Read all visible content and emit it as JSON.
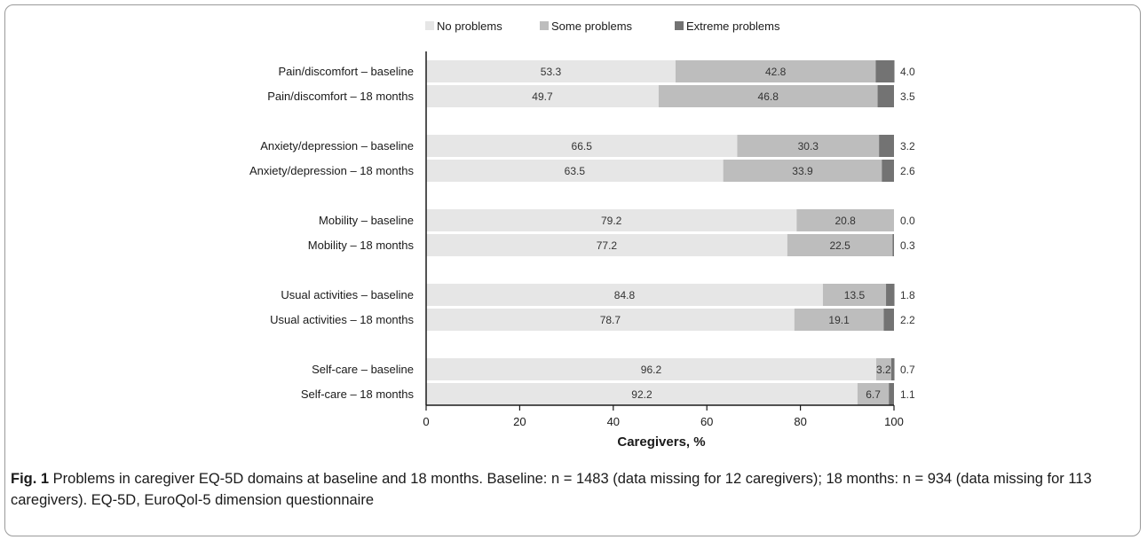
{
  "chart_data": {
    "type": "bar",
    "orientation": "horizontal",
    "stacked": true,
    "categories": [
      "Pain/discomfort – baseline",
      "Pain/discomfort – 18 months",
      "Anxiety/depression – baseline",
      "Anxiety/depression – 18 months",
      "Mobility – baseline",
      "Mobility – 18 months",
      "Usual activities – baseline",
      "Usual activities – 18 months",
      "Self-care – baseline",
      "Self-care – 18 months"
    ],
    "series": [
      {
        "name": "No problems",
        "color": "#e6e6e6",
        "values": [
          53.3,
          49.7,
          66.5,
          63.5,
          79.2,
          77.2,
          84.8,
          78.7,
          96.2,
          92.2
        ]
      },
      {
        "name": "Some problems",
        "color": "#bdbdbd",
        "values": [
          42.8,
          46.8,
          30.3,
          33.9,
          20.8,
          22.5,
          13.5,
          19.1,
          3.2,
          6.7
        ]
      },
      {
        "name": "Extreme problems",
        "color": "#737373",
        "values": [
          4.0,
          3.5,
          3.2,
          2.6,
          0.0,
          0.3,
          1.8,
          2.2,
          0.7,
          1.1
        ]
      }
    ],
    "extreme_labels": [
      "4.0",
      "3.5",
      "3.2",
      "2.6",
      "0.0",
      "0.3",
      "1.8",
      "2.2",
      "0.7",
      "1.1"
    ],
    "xlabel": "Caregivers, %",
    "xlim": [
      0,
      100
    ],
    "xticks": [
      0,
      20,
      40,
      60,
      80,
      100
    ],
    "legend_position": "top",
    "grid": false
  },
  "caption": {
    "label": "Fig. 1",
    "text": " Problems in caregiver EQ-5D domains at baseline and 18 months. Baseline: n = 1483 (data missing for 12 caregivers); 18 months: n = 934 (data missing for 113 caregivers). EQ-5D, EuroQol-5 dimension questionnaire"
  }
}
